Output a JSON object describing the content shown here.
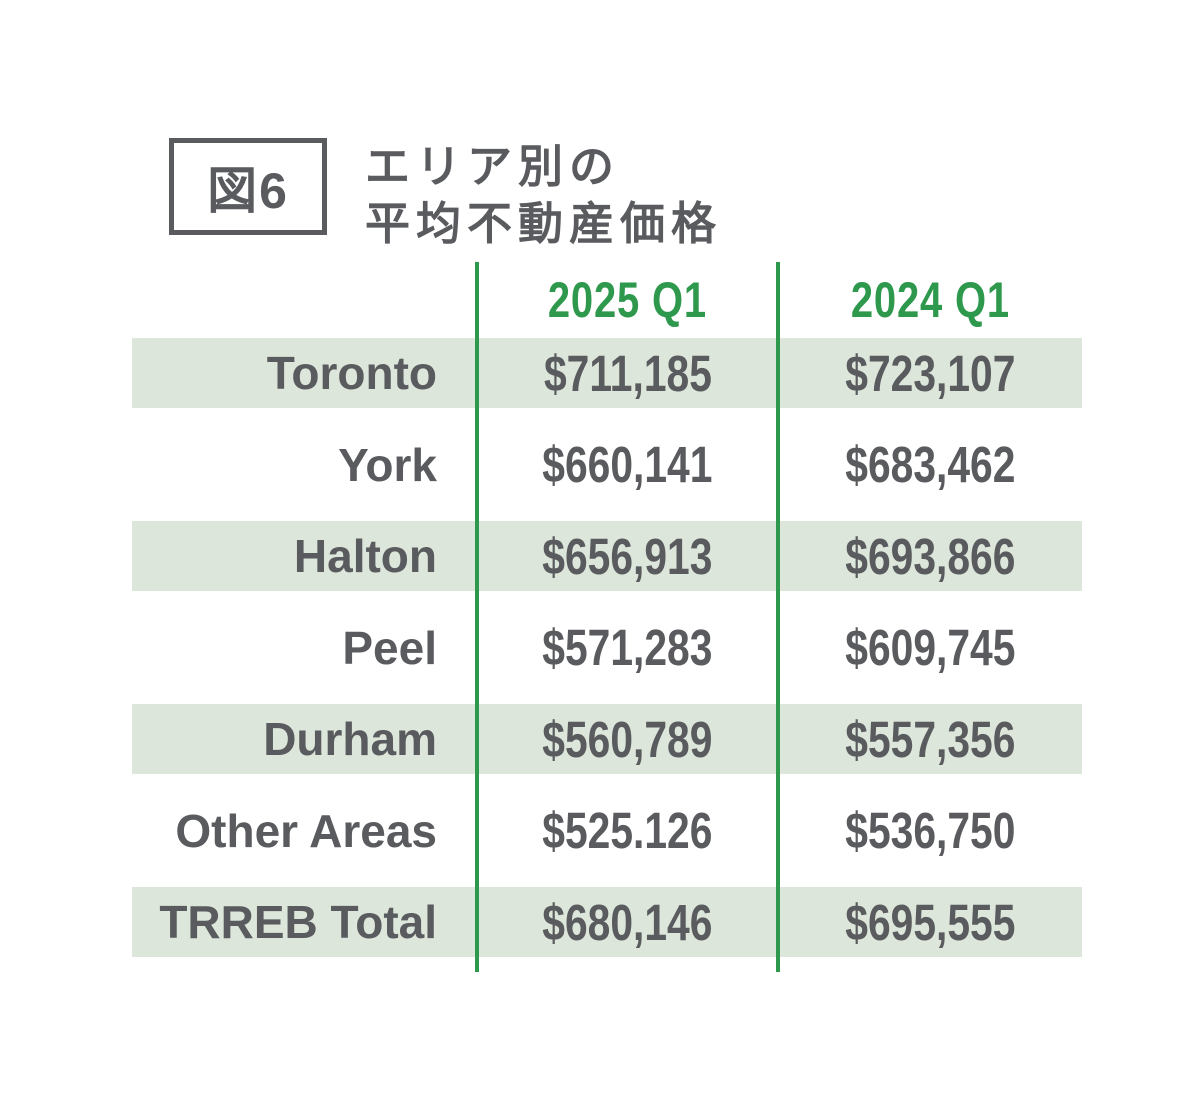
{
  "figure": {
    "label": "図6",
    "title_line1": "エリア別の",
    "title_line2": "平均不動産価格"
  },
  "table": {
    "columns": [
      "2025 Q1",
      "2024 Q1"
    ],
    "rows": [
      {
        "area": "Toronto",
        "q1_2025": "$711,185",
        "q1_2024": "$723,107"
      },
      {
        "area": "York",
        "q1_2025": "$660,141",
        "q1_2024": "$683,462"
      },
      {
        "area": "Halton",
        "q1_2025": "$656,913",
        "q1_2024": "$693,866"
      },
      {
        "area": "Peel",
        "q1_2025": "$571,283",
        "q1_2024": "$609,745"
      },
      {
        "area": "Durham",
        "q1_2025": "$560,789",
        "q1_2024": "$557,356"
      },
      {
        "area": "Other Areas",
        "q1_2025": "$525.126",
        "q1_2024": "$536,750"
      },
      {
        "area": "TRREB Total",
        "q1_2025": "$680,146",
        "q1_2024": "$695,555"
      }
    ]
  },
  "colors": {
    "accent_green": "#2e994d",
    "row_shade": "#dde6da",
    "text_dark": "#595b5e",
    "background": "#ffffff"
  },
  "chart_data": {
    "type": "table",
    "title": "図6 エリア別の平均不動産価格",
    "categories": [
      "Toronto",
      "York",
      "Halton",
      "Peel",
      "Durham",
      "Other Areas",
      "TRREB Total"
    ],
    "series": [
      {
        "name": "2025 Q1",
        "values": [
          711185,
          660141,
          656913,
          571283,
          560789,
          525126,
          680146
        ]
      },
      {
        "name": "2024 Q1",
        "values": [
          723107,
          683462,
          693866,
          609745,
          557356,
          536750,
          695555
        ]
      }
    ],
    "legend_position": "top",
    "grid": false
  }
}
